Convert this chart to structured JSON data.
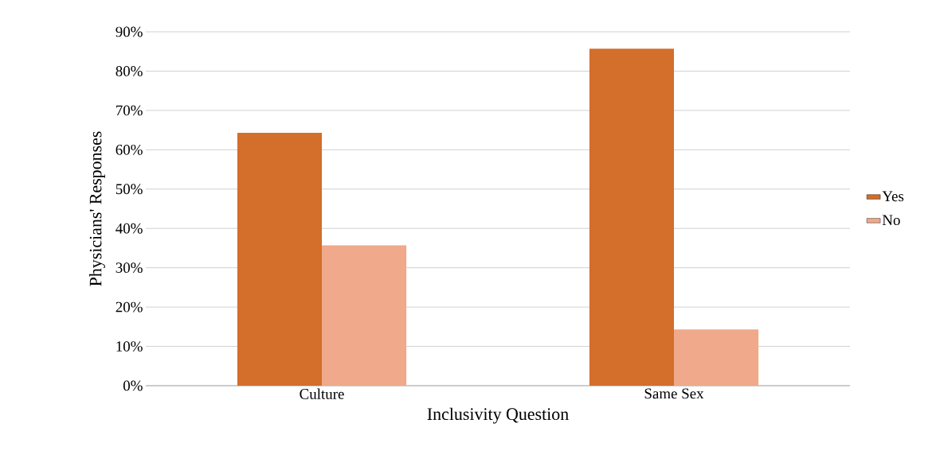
{
  "chart_data": {
    "type": "bar",
    "xlabel": "Inclusivity Question",
    "ylabel": "Physicians' Responses",
    "categories": [
      "Culture",
      "Same Sex"
    ],
    "series": [
      {
        "name": "Yes",
        "color": "#d36e2b",
        "values": [
          64.3,
          85.7
        ]
      },
      {
        "name": "No",
        "color": "#f0a98a",
        "values": [
          35.7,
          14.3
        ]
      }
    ],
    "ylim": [
      0,
      90
    ],
    "yticks": [
      {
        "value": 0,
        "label": "0%"
      },
      {
        "value": 10,
        "label": "10%"
      },
      {
        "value": 20,
        "label": "20%"
      },
      {
        "value": 30,
        "label": "30%"
      },
      {
        "value": 40,
        "label": "40%"
      },
      {
        "value": 50,
        "label": "50%"
      },
      {
        "value": 60,
        "label": "60%"
      },
      {
        "value": 70,
        "label": "70%"
      },
      {
        "value": 80,
        "label": "80%"
      },
      {
        "value": 90,
        "label": "90%"
      }
    ],
    "grid": "y",
    "legend": "right"
  }
}
